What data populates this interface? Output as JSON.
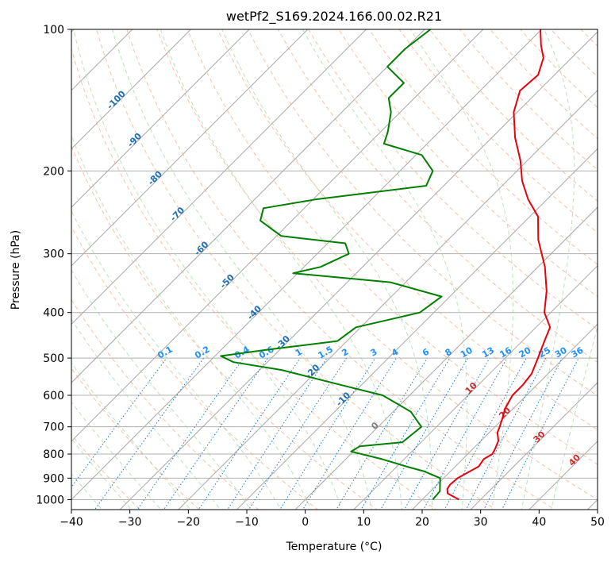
{
  "chart_data": {
    "type": "line",
    "title": "wetPf2_S169.2024.166.00.02.R21",
    "xlabel": "Temperature (°C)",
    "ylabel": "Pressure (hPa)",
    "xlim": [
      -40,
      50
    ],
    "ylim": [
      1050,
      100
    ],
    "y_scale": "log",
    "skew": "skew-T log-P",
    "grid": true,
    "x_ticks": [
      -40,
      -30,
      -20,
      -10,
      0,
      10,
      20,
      30,
      40,
      50
    ],
    "y_ticks": [
      100,
      200,
      300,
      400,
      500,
      600,
      700,
      800,
      900,
      1000
    ],
    "dry_adiabat_labels": [
      "-100",
      "-90",
      "-80",
      "-70",
      "-60",
      "-50",
      "-40",
      "-30",
      "-20",
      "-10",
      "0",
      "10",
      "20",
      "30",
      "40"
    ],
    "mixing_ratio_labels": [
      "0.1",
      "0.2",
      "0.4",
      "0.6",
      "1",
      "1.5",
      "2",
      "3",
      "4",
      "6",
      "8",
      "10",
      "13",
      "16",
      "20",
      "25",
      "30",
      "36"
    ],
    "series": [
      {
        "color": "#e8000b",
        "points": [
          [
            1000,
            26.3
          ],
          [
            970,
            23.3
          ],
          [
            950,
            22.5
          ],
          [
            930,
            22.2
          ],
          [
            900,
            22.4
          ],
          [
            880,
            23.0
          ],
          [
            850,
            24.0
          ],
          [
            820,
            23.6
          ],
          [
            800,
            24.2
          ],
          [
            780,
            23.8
          ],
          [
            750,
            23.0
          ],
          [
            720,
            21.4
          ],
          [
            700,
            20.8
          ],
          [
            660,
            19.4
          ],
          [
            640,
            18.6
          ],
          [
            600,
            17.6
          ],
          [
            570,
            17.6
          ],
          [
            540,
            17.2
          ],
          [
            500,
            15.6
          ],
          [
            460,
            13.8
          ],
          [
            430,
            12.4
          ],
          [
            400,
            8.9
          ],
          [
            360,
            5.6
          ],
          [
            320,
            1.2
          ],
          [
            280,
            -4.6
          ],
          [
            250,
            -8.6
          ],
          [
            230,
            -13.2
          ],
          [
            210,
            -17.4
          ],
          [
            190,
            -21.2
          ],
          [
            170,
            -26.0
          ],
          [
            150,
            -30.6
          ],
          [
            135,
            -33.2
          ],
          [
            125,
            -32.8
          ],
          [
            115,
            -34.8
          ],
          [
            108,
            -37.4
          ],
          [
            100,
            -40.2
          ]
        ]
      },
      {
        "color": "#007f00",
        "points": [
          [
            1000,
            21.8
          ],
          [
            960,
            21.6
          ],
          [
            900,
            19.4
          ],
          [
            870,
            15.4
          ],
          [
            850,
            11.6
          ],
          [
            820,
            6.2
          ],
          [
            790,
            -0.4
          ],
          [
            770,
            0.2
          ],
          [
            755,
            6.8
          ],
          [
            700,
            7.4
          ],
          [
            650,
            3.0
          ],
          [
            600,
            -4.6
          ],
          [
            570,
            -13.6
          ],
          [
            530,
            -26.2
          ],
          [
            510,
            -35.8
          ],
          [
            495,
            -39.0
          ],
          [
            480,
            -32.2
          ],
          [
            460,
            -21.6
          ],
          [
            430,
            -20.8
          ],
          [
            400,
            -12.4
          ],
          [
            370,
            -11.4
          ],
          [
            345,
            -22.6
          ],
          [
            330,
            -40.8
          ],
          [
            320,
            -37.2
          ],
          [
            300,
            -34.6
          ],
          [
            285,
            -37.0
          ],
          [
            275,
            -49.2
          ],
          [
            255,
            -55.4
          ],
          [
            240,
            -57.0
          ],
          [
            230,
            -49.6
          ],
          [
            215,
            -33.0
          ],
          [
            200,
            -34.4
          ],
          [
            185,
            -39.0
          ],
          [
            175,
            -47.4
          ],
          [
            165,
            -48.8
          ],
          [
            150,
            -51.6
          ],
          [
            140,
            -54.4
          ],
          [
            130,
            -54.4
          ],
          [
            120,
            -60.0
          ],
          [
            110,
            -60.0
          ],
          [
            100,
            -59.0
          ]
        ]
      }
    ]
  }
}
